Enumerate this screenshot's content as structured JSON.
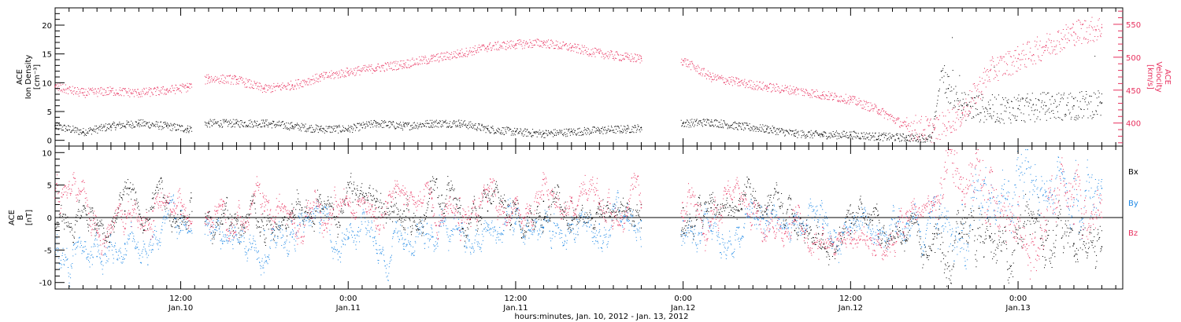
{
  "colors": {
    "black": "#000000",
    "velocity": "#e8305e",
    "bx": "#000000",
    "by": "#1e88e5",
    "bz": "#e8305e"
  },
  "xaxis": {
    "title": "hours:minutes, Jan. 10, 2012 - Jan. 13, 2012",
    "range_hours": [
      3.0,
      79.5
    ],
    "major_ticks": [
      {
        "hours": 12,
        "time": "12:00",
        "date": "Jan.10"
      },
      {
        "hours": 24,
        "time": "0:00",
        "date": "Jan.11"
      },
      {
        "hours": 36,
        "time": "12:00",
        "date": "Jan.11"
      },
      {
        "hours": 48,
        "time": "0:00",
        "date": "Jan.12"
      },
      {
        "hours": 60,
        "time": "12:00",
        "date": "Jan.12"
      },
      {
        "hours": 72,
        "time": "0:00",
        "date": "Jan.13"
      }
    ],
    "minor_tick_step_hours": 1
  },
  "panel1": {
    "left_label": [
      "ACE",
      "Ion Density",
      "[cm⁻³]"
    ],
    "right_label": [
      "ACE",
      "Velocity",
      "[km/s]"
    ],
    "left_ticks": [
      "0",
      "5",
      "10",
      "15",
      "20"
    ],
    "right_ticks": [
      "400",
      "450",
      "500",
      "550"
    ]
  },
  "panel2": {
    "left_label": [
      "ACE",
      "B",
      "[nT]"
    ],
    "left_ticks": [
      "-10",
      "-5",
      "0",
      "5",
      "10"
    ],
    "legend": [
      "Bx",
      "By",
      "Bz"
    ]
  },
  "chart_data": [
    {
      "type": "scatter",
      "panel": "top",
      "x_unit": "hours since 2012-01-10 00:00 UT",
      "gaps_hours": [
        [
          12.8,
          13.7
        ],
        [
          45.0,
          47.8
        ],
        [
          56.3,
          56.4
        ],
        [
          66.4,
          66.5
        ]
      ],
      "ylim_left": [
        -1,
        23
      ],
      "ylim_right": [
        365,
        575
      ],
      "series": [
        {
          "axis": "left",
          "color": "#000000",
          "x": [
            3,
            5,
            7,
            9,
            11,
            12.5,
            14,
            16,
            18,
            20,
            22,
            24,
            26,
            28,
            30,
            32,
            34,
            36,
            38,
            40,
            42,
            44,
            45,
            48,
            50,
            52,
            54,
            56,
            58,
            60,
            62,
            64,
            65.8,
            66.5,
            67,
            68,
            70,
            72,
            74,
            76,
            78
          ],
          "y": [
            2.5,
            1.5,
            2.5,
            3,
            2.5,
            2,
            3,
            3,
            3,
            2.5,
            2,
            2,
            3,
            2.5,
            3,
            3,
            2,
            1.5,
            1.2,
            1.5,
            1.8,
            2.0,
            2.2,
            3,
            3.2,
            2.5,
            2,
            1.2,
            1,
            1,
            0.7,
            0.5,
            0.4,
            12,
            9,
            6,
            5.5,
            5.5,
            6,
            6,
            6.5
          ]
        },
        {
          "axis": "right",
          "color": "#e8305e",
          "x": [
            3,
            5,
            7,
            9,
            11,
            12.5,
            14,
            16,
            18,
            20,
            22,
            24,
            26,
            28,
            30,
            32,
            34,
            36,
            38,
            40,
            42,
            44,
            45,
            48,
            50,
            52,
            54,
            56,
            58,
            60,
            62,
            64,
            66,
            68,
            70,
            72,
            74,
            76,
            78
          ],
          "y": [
            455,
            446,
            449,
            446,
            450,
            455,
            468,
            466,
            452,
            458,
            470,
            478,
            484,
            490,
            498,
            506,
            516,
            520,
            522,
            515,
            506,
            500,
            498,
            495,
            470,
            462,
            455,
            450,
            443,
            436,
            420,
            395,
            390,
            415,
            480,
            498,
            518,
            538,
            545
          ]
        }
      ]
    },
    {
      "type": "scatter",
      "panel": "bottom",
      "x_unit": "hours since 2012-01-10 00:00 UT",
      "gaps_hours": [
        [
          12.8,
          13.7
        ],
        [
          45.0,
          47.8
        ]
      ],
      "ylim": [
        -11,
        11
      ],
      "series": [
        {
          "name": "Bx",
          "color": "#000000",
          "x": [
            3,
            6,
            8,
            10,
            12,
            15,
            18,
            20,
            22,
            24,
            26,
            28,
            30,
            32,
            34,
            36,
            38,
            40,
            42,
            44,
            45,
            48,
            50,
            52,
            54,
            56,
            58,
            60,
            62,
            64,
            66,
            68,
            70,
            72,
            74,
            76,
            78
          ],
          "y": [
            -1,
            -1,
            1,
            1.5,
            1,
            -1,
            0,
            1,
            1,
            2,
            2.5,
            1,
            1,
            1.5,
            1,
            2,
            2.5,
            2.5,
            2.2,
            2.2,
            2.0,
            1.5,
            1.5,
            1,
            0.5,
            -2,
            -2.5,
            -2.5,
            -3,
            -3.5,
            -2.5,
            -3,
            -3,
            -4,
            -3.5,
            -4,
            -4.5
          ]
        },
        {
          "name": "By",
          "color": "#1e88e5",
          "x": [
            3,
            6,
            8,
            10,
            12,
            15,
            18,
            20,
            22,
            24,
            26,
            28,
            30,
            32,
            34,
            36,
            38,
            40,
            42,
            44,
            45,
            48,
            50,
            52,
            54,
            56,
            58,
            60,
            62,
            64,
            66,
            68,
            70,
            72,
            74,
            76,
            78
          ],
          "y": [
            -5,
            -6,
            -4,
            -3,
            -2,
            -4,
            -2,
            -3,
            -1,
            -3,
            -4,
            -4,
            -3,
            -2,
            -2,
            -1,
            -1.5,
            -2,
            -1,
            -0.5,
            -0.5,
            -0.5,
            -2,
            -1.5,
            -0.5,
            -1,
            -1,
            -1.5,
            -2,
            -1,
            0,
            2,
            3,
            2,
            4,
            6,
            4.5
          ]
        },
        {
          "name": "Bz",
          "color": "#e8305e",
          "x": [
            3,
            6,
            8,
            10,
            12,
            15,
            18,
            20,
            22,
            24,
            26,
            28,
            30,
            32,
            34,
            36,
            38,
            40,
            42,
            44,
            45,
            48,
            50,
            52,
            54,
            56,
            58,
            60,
            62,
            64,
            66,
            68,
            70,
            72,
            74,
            76,
            78
          ],
          "y": [
            3,
            -2,
            0.5,
            1,
            0.5,
            2,
            1,
            -1,
            2,
            2,
            1.5,
            2,
            3,
            3,
            2.5,
            3,
            3.5,
            3,
            2,
            1.5,
            1.5,
            0,
            1,
            2,
            1.5,
            -0.5,
            -1.5,
            -2,
            -2.5,
            0,
            2,
            4,
            -1,
            0,
            -2,
            -1,
            0
          ]
        }
      ]
    }
  ]
}
